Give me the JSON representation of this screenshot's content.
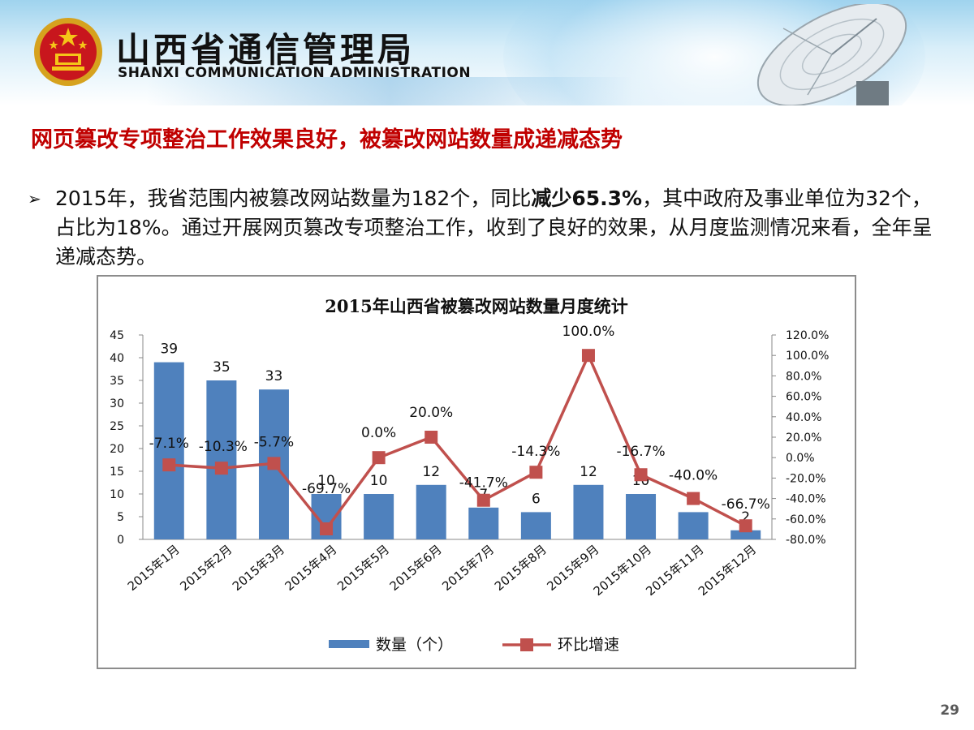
{
  "header": {
    "org_cn": "山西省通信管理局",
    "org_en": "SHANXI COMMUNICATION ADMINISTRATION"
  },
  "headline": "网页篡改专项整治工作效果良好，被篡改网站数量成递减态势",
  "bullet": {
    "part1": "2015年，我省范围内被篡改网站数量为182个，同比",
    "bold": "减少65.3%",
    "part2": "，其中政府及事业单位为32个，占比为18%。通过开展网页篡改专项整治工作，收到了良好的效果，从月度监测情况来看，全年呈递减态势。"
  },
  "page_number": "29",
  "colors": {
    "bar": "#4f81bd",
    "line": "#c0504d",
    "headline": "#c00000"
  },
  "chart_data": {
    "type": "bar",
    "title": "2015年山西省被篡改网站数量月度统计",
    "categories": [
      "2015年1月",
      "2015年2月",
      "2015年3月",
      "2015年4月",
      "2015年5月",
      "2015年6月",
      "2015年7月",
      "2015年8月",
      "2015年9月",
      "2015年10月",
      "2015年11月",
      "2015年12月"
    ],
    "series": [
      {
        "name": "数量（个）",
        "type": "bar",
        "axis": "left",
        "values": [
          39,
          35,
          33,
          10,
          10,
          12,
          7,
          6,
          12,
          10,
          6,
          2
        ]
      },
      {
        "name": "环比增速",
        "type": "line",
        "axis": "right",
        "values": [
          -7.1,
          -10.3,
          -5.7,
          -69.7,
          0.0,
          20.0,
          -41.7,
          -14.3,
          100.0,
          -16.7,
          -40.0,
          -66.7
        ],
        "labels": [
          "-7.1%",
          "-10.3%",
          "-5.7%",
          "-69.7%",
          "0.0%",
          "20.0%",
          "-41.7%",
          "-14.3%",
          "100.0%",
          "-16.7%",
          "-40.0%",
          "-66.7%"
        ]
      }
    ],
    "ylim": [
      0,
      45
    ],
    "yticks": [
      "0",
      "5",
      "10",
      "15",
      "20",
      "25",
      "30",
      "35",
      "40",
      "45"
    ],
    "y2lim": [
      -80,
      120
    ],
    "y2ticks": [
      "-80.0%",
      "-60.0%",
      "-40.0%",
      "-20.0%",
      "0.0%",
      "20.0%",
      "40.0%",
      "60.0%",
      "80.0%",
      "100.0%",
      "120.0%"
    ],
    "legend_position": "bottom",
    "grid": false
  }
}
